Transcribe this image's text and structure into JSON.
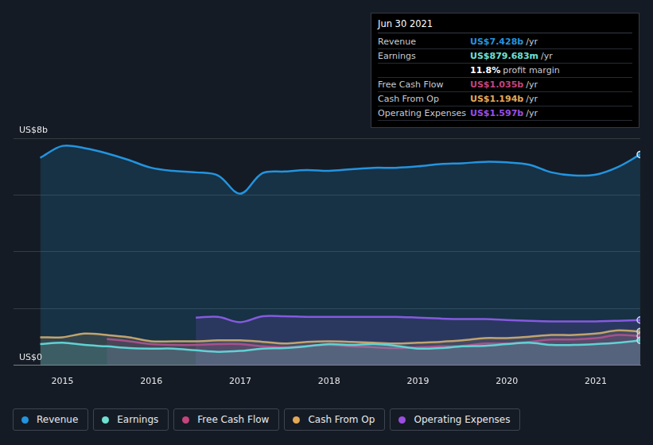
{
  "chart_data": {
    "type": "area",
    "x": [
      2014.75,
      2015.0,
      2015.25,
      2015.5,
      2015.75,
      2016.0,
      2016.25,
      2016.5,
      2016.75,
      2017.0,
      2017.25,
      2017.5,
      2017.75,
      2018.0,
      2018.25,
      2018.5,
      2018.75,
      2019.0,
      2019.25,
      2019.5,
      2019.75,
      2020.0,
      2020.25,
      2020.5,
      2020.75,
      2021.0,
      2021.25,
      2021.5
    ],
    "series": [
      {
        "name": "Revenue",
        "color": "#2394df",
        "values": [
          7.31,
          7.73,
          7.65,
          7.47,
          7.23,
          6.96,
          6.85,
          6.8,
          6.69,
          6.05,
          6.77,
          6.83,
          6.88,
          6.85,
          6.91,
          6.96,
          6.96,
          7.01,
          7.09,
          7.12,
          7.17,
          7.15,
          7.07,
          6.8,
          6.69,
          6.72,
          6.99,
          7.428
        ]
      },
      {
        "name": "Earnings",
        "color": "#6ee0d2",
        "values": [
          0.75,
          0.8,
          0.72,
          0.67,
          0.61,
          0.59,
          0.59,
          0.53,
          0.48,
          0.51,
          0.59,
          0.61,
          0.67,
          0.75,
          0.72,
          0.75,
          0.69,
          0.59,
          0.61,
          0.67,
          0.69,
          0.75,
          0.8,
          0.72,
          0.72,
          0.75,
          0.8,
          0.88
        ]
      },
      {
        "name": "Free Cash Flow",
        "color": "#c4447b",
        "values": [
          null,
          null,
          null,
          0.93,
          0.85,
          0.75,
          0.72,
          0.72,
          0.75,
          0.75,
          0.67,
          0.64,
          0.69,
          0.72,
          0.67,
          0.64,
          0.61,
          0.64,
          0.67,
          0.69,
          0.77,
          0.77,
          0.83,
          0.91,
          0.91,
          0.96,
          1.07,
          1.035
        ]
      },
      {
        "name": "Cash From Op",
        "color": "#e3a857",
        "values": [
          0.99,
          0.99,
          1.12,
          1.07,
          0.99,
          0.85,
          0.85,
          0.85,
          0.88,
          0.88,
          0.83,
          0.77,
          0.83,
          0.85,
          0.83,
          0.8,
          0.77,
          0.8,
          0.83,
          0.88,
          0.96,
          0.96,
          1.01,
          1.07,
          1.07,
          1.12,
          1.23,
          1.194
        ]
      },
      {
        "name": "Operating Expenses",
        "color": "#9b4ee0",
        "values": [
          null,
          null,
          null,
          null,
          null,
          null,
          null,
          1.68,
          1.71,
          1.52,
          1.73,
          1.73,
          1.71,
          1.71,
          1.71,
          1.71,
          1.71,
          1.68,
          1.65,
          1.63,
          1.63,
          1.6,
          1.57,
          1.55,
          1.55,
          1.55,
          1.57,
          1.597
        ]
      }
    ],
    "xlim": [
      2014.45,
      2021.5
    ],
    "xticks": [
      2015,
      2016,
      2017,
      2018,
      2019,
      2020,
      2021
    ],
    "ylim": [
      0,
      8
    ],
    "yticks": [
      {
        "value": 0,
        "label": "US$0"
      },
      {
        "value": 2,
        "label": null
      },
      {
        "value": 4,
        "label": null
      },
      {
        "value": 6,
        "label": null
      },
      {
        "value": 8,
        "label": "US$8b"
      }
    ],
    "grid": true,
    "legend": "bottom",
    "annotations": {
      "title": "Jun 30 2021",
      "rows": [
        {
          "label": "Revenue",
          "value": "US$7.428b",
          "unit": "/yr",
          "color": "#2394df"
        },
        {
          "label": "Earnings",
          "value": "US$879.683m",
          "unit": "/yr",
          "color": "#6ee0d2"
        },
        {
          "label": null,
          "value": "11.8%",
          "unit": "profit margin",
          "color": "#ffffff"
        },
        {
          "label": "Free Cash Flow",
          "value": "US$1.035b",
          "unit": "/yr",
          "color": "#c4447b"
        },
        {
          "label": "Cash From Op",
          "value": "US$1.194b",
          "unit": "/yr",
          "color": "#e3a857"
        },
        {
          "label": "Operating Expenses",
          "value": "US$1.597b",
          "unit": "/yr",
          "color": "#9b4ee0"
        }
      ]
    }
  }
}
